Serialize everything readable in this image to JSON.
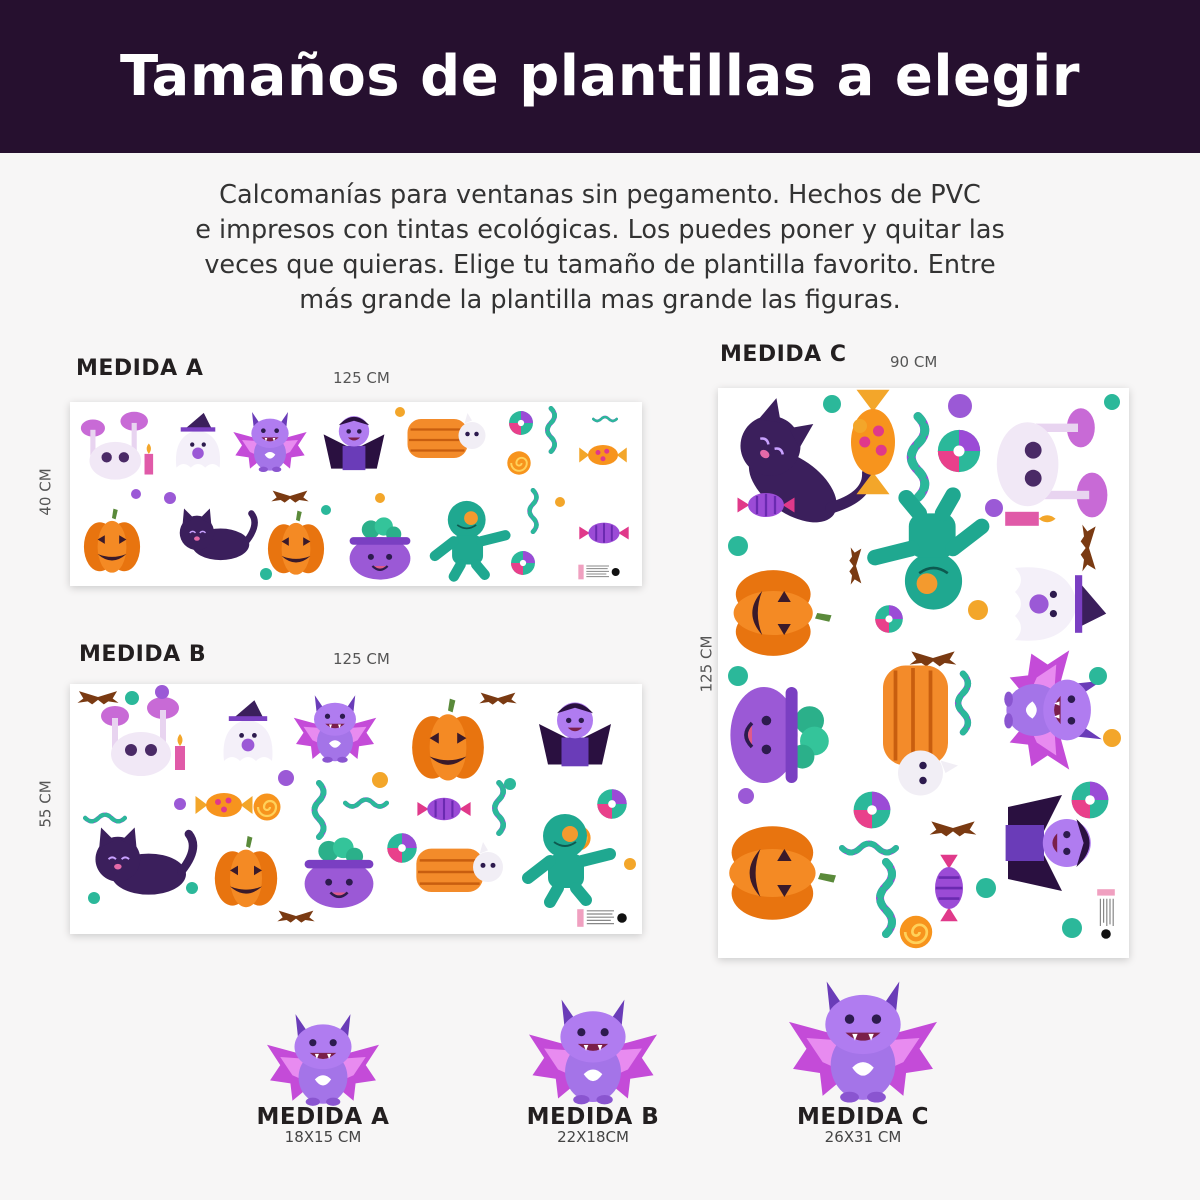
{
  "header": {
    "title": "Tamaños de plantillas a elegir"
  },
  "description": {
    "line1": "Calcomanías para ventanas sin pegamento. Hechos de PVC",
    "line2": "e impresos con tintas ecológicas. Los puedes poner y quitar las",
    "line3": "veces que quieras. Elige tu tamaño de plantilla favorito. Entre",
    "line4": "más grande la plantilla mas grande las figuras."
  },
  "templates": {
    "a": {
      "label": "MEDIDA A",
      "width": "125 CM",
      "height": "40 CM"
    },
    "b": {
      "label": "MEDIDA B",
      "width": "125 CM",
      "height": "55 CM"
    },
    "c": {
      "label": "MEDIDA C",
      "width": "90 CM",
      "height": "125 CM"
    }
  },
  "figure_sizes": {
    "a": {
      "label": "MEDIDA A",
      "size": "18X15 CM"
    },
    "b": {
      "label": "MEDIDA B",
      "size": "22X18CM"
    },
    "c": {
      "label": "MEDIDA C",
      "size": "26X31 CM"
    }
  },
  "colors": {
    "header_bg": "#26102f",
    "purple": "#9b59d6",
    "orange": "#f07a1a",
    "teal": "#1aa89a",
    "pink": "#e040a8",
    "dark": "#2d1b4e"
  }
}
